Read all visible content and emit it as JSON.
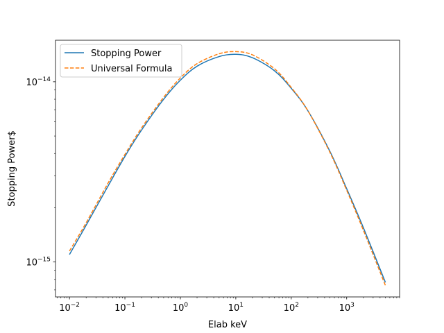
{
  "chart_data": {
    "type": "line",
    "xlabel": "Elab keV",
    "ylabel": "Stopping Power$",
    "xscale": "log",
    "yscale": "log",
    "xlim": [
      0.0056,
      9000
    ],
    "ylim": [
      6.4e-16,
      1.7e-14
    ],
    "grid": false,
    "legend_position": "upper-left",
    "x_ticks": [
      {
        "base": "10",
        "exp": "−2",
        "value": 0.01
      },
      {
        "base": "10",
        "exp": "−1",
        "value": 0.1
      },
      {
        "base": "10",
        "exp": "0",
        "value": 1
      },
      {
        "base": "10",
        "exp": "1",
        "value": 10
      },
      {
        "base": "10",
        "exp": "2",
        "value": 100
      },
      {
        "base": "10",
        "exp": "3",
        "value": 1000
      }
    ],
    "y_ticks": [
      {
        "base": "10",
        "exp": "−15",
        "value": 1e-15
      },
      {
        "base": "10",
        "exp": "−14",
        "value": 1e-14
      }
    ],
    "series": [
      {
        "name": "Stopping Power",
        "color": "#1f77b4",
        "style": "solid",
        "x": [
          0.01,
          0.02,
          0.05,
          0.1,
          0.2,
          0.5,
          1,
          2,
          5,
          10,
          20,
          50,
          100,
          200,
          500,
          1000,
          2000,
          5000
        ],
        "y": [
          1.1e-15,
          1.6e-15,
          2.65e-15,
          3.85e-15,
          5.4e-15,
          8e-15,
          1.02e-14,
          1.22e-14,
          1.38e-14,
          1.42e-14,
          1.36e-14,
          1.15e-14,
          9.2e-15,
          6.9e-15,
          4.1e-15,
          2.55e-15,
          1.55e-15,
          7.7e-16
        ]
      },
      {
        "name": "Universal Formula",
        "color": "#ff7f0e",
        "style": "dashed",
        "x": [
          0.01,
          0.02,
          0.05,
          0.1,
          0.2,
          0.5,
          1,
          2,
          5,
          10,
          20,
          50,
          100,
          200,
          500,
          1000,
          2000,
          5000
        ],
        "y": [
          1.15e-15,
          1.65e-15,
          2.75e-15,
          3.95e-15,
          5.55e-15,
          8.2e-15,
          1.05e-14,
          1.26e-14,
          1.43e-14,
          1.47e-14,
          1.41e-14,
          1.18e-14,
          9.3e-15,
          6.9e-15,
          4.05e-15,
          2.5e-15,
          1.5e-15,
          7.4e-16
        ]
      }
    ]
  }
}
